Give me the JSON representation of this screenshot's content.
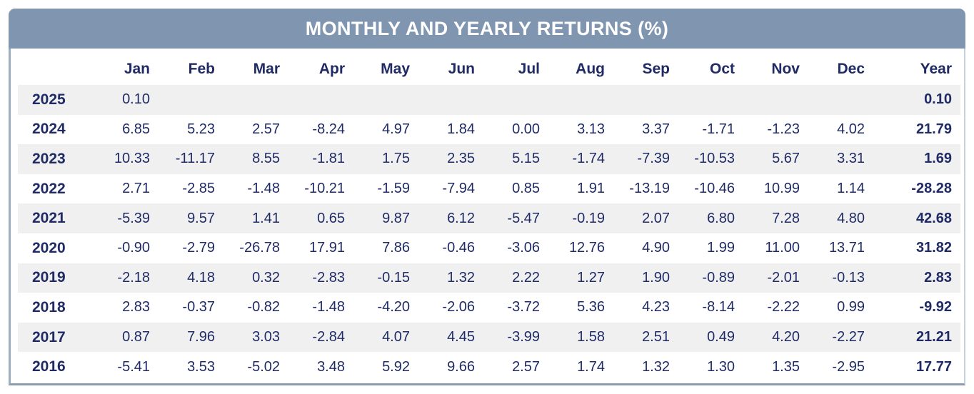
{
  "colors": {
    "header_background": "#8095b0",
    "title_text": "#ffffff",
    "table_text": "#202b66",
    "stripe_background": "#f0f0f1",
    "border_light": "#c4d2de",
    "border_dark": "#8b9cae"
  },
  "chart_data": {
    "type": "table",
    "title": "MONTHLY AND YEARLY RETURNS (%)",
    "columns": [
      "",
      "Jan",
      "Feb",
      "Mar",
      "Apr",
      "May",
      "Jun",
      "Jul",
      "Aug",
      "Sep",
      "Oct",
      "Nov",
      "Dec",
      "Year"
    ],
    "rows": [
      {
        "year": "2025",
        "values": [
          "0.10",
          "",
          "",
          "",
          "",
          "",
          "",
          "",
          "",
          "",
          "",
          ""
        ],
        "total": "0.10"
      },
      {
        "year": "2024",
        "values": [
          "6.85",
          "5.23",
          "2.57",
          "-8.24",
          "4.97",
          "1.84",
          "0.00",
          "3.13",
          "3.37",
          "-1.71",
          "-1.23",
          "4.02"
        ],
        "total": "21.79"
      },
      {
        "year": "2023",
        "values": [
          "10.33",
          "-11.17",
          "8.55",
          "-1.81",
          "1.75",
          "2.35",
          "5.15",
          "-1.74",
          "-7.39",
          "-10.53",
          "5.67",
          "3.31"
        ],
        "total": "1.69"
      },
      {
        "year": "2022",
        "values": [
          "2.71",
          "-2.85",
          "-1.48",
          "-10.21",
          "-1.59",
          "-7.94",
          "0.85",
          "1.91",
          "-13.19",
          "-10.46",
          "10.99",
          "1.14"
        ],
        "total": "-28.28"
      },
      {
        "year": "2021",
        "values": [
          "-5.39",
          "9.57",
          "1.41",
          "0.65",
          "9.87",
          "6.12",
          "-5.47",
          "-0.19",
          "2.07",
          "6.80",
          "7.28",
          "4.80"
        ],
        "total": "42.68"
      },
      {
        "year": "2020",
        "values": [
          "-0.90",
          "-2.79",
          "-26.78",
          "17.91",
          "7.86",
          "-0.46",
          "-3.06",
          "12.76",
          "4.90",
          "1.99",
          "11.00",
          "13.71"
        ],
        "total": "31.82"
      },
      {
        "year": "2019",
        "values": [
          "-2.18",
          "4.18",
          "0.32",
          "-2.83",
          "-0.15",
          "1.32",
          "2.22",
          "1.27",
          "1.90",
          "-0.89",
          "-2.01",
          "-0.13"
        ],
        "total": "2.83"
      },
      {
        "year": "2018",
        "values": [
          "2.83",
          "-0.37",
          "-0.82",
          "-1.48",
          "-4.20",
          "-2.06",
          "-3.72",
          "5.36",
          "4.23",
          "-8.14",
          "-2.22",
          "0.99"
        ],
        "total": "-9.92"
      },
      {
        "year": "2017",
        "values": [
          "0.87",
          "7.96",
          "3.03",
          "-2.84",
          "4.07",
          "4.45",
          "-3.99",
          "1.58",
          "2.51",
          "0.49",
          "4.20",
          "-2.27"
        ],
        "total": "21.21"
      },
      {
        "year": "2016",
        "values": [
          "-5.41",
          "3.53",
          "-5.02",
          "3.48",
          "5.92",
          "9.66",
          "2.57",
          "1.74",
          "1.32",
          "1.30",
          "1.35",
          "-2.95"
        ],
        "total": "17.77"
      }
    ]
  }
}
